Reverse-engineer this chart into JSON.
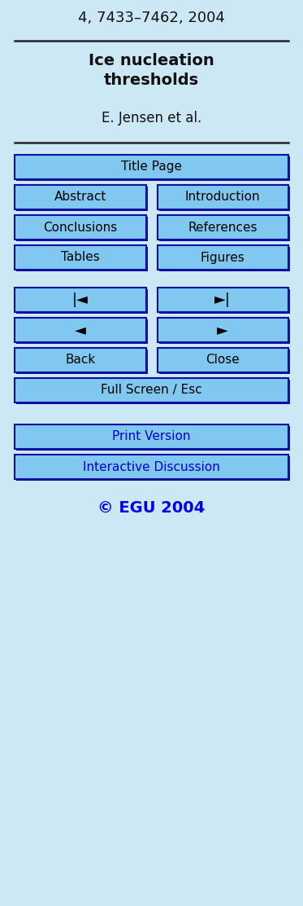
{
  "bg_color": "#cce8f4",
  "header_text": "4, 7433–7462, 2004",
  "title_bold": "Ice nucleation\nthresholds",
  "author": "E. Jensen et al.",
  "button_bg": "#80c8f0",
  "button_border": "#1010a0",
  "button_text_color": "#000000",
  "blue_text_color": "#0000cc",
  "copyright_color": "#0000ee",
  "divider_color": "#222222",
  "btn_print": "Print Version",
  "btn_interactive": "Interactive Discussion",
  "copyright": "© EGU 2004",
  "fig_width": 3.73,
  "fig_height": 11.12,
  "dpi": 100
}
